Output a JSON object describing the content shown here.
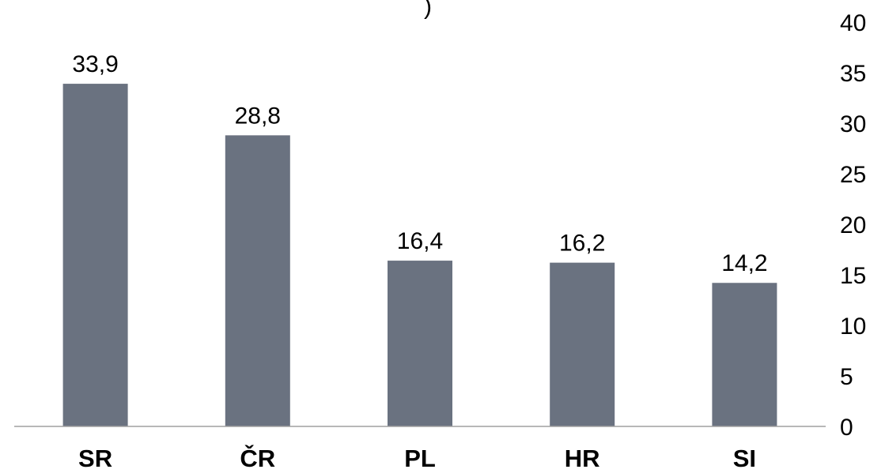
{
  "chart_data": {
    "type": "bar",
    "title": ")",
    "categories": [
      "SR",
      "ČR",
      "PL",
      "HR",
      "SI"
    ],
    "values": [
      33.9,
      28.8,
      16.4,
      16.2,
      14.2
    ],
    "value_labels": [
      "33,9",
      "28,8",
      "16,4",
      "16,2",
      "14,2"
    ],
    "ylim": [
      0,
      40
    ],
    "y_ticks": [
      "0",
      "5",
      "10",
      "15",
      "20",
      "25",
      "30",
      "35",
      "40"
    ],
    "y_axis_position": "right",
    "grid": false,
    "legend": "none",
    "bar_color": "#6a7280",
    "axis_color": "#a0a0a0"
  }
}
